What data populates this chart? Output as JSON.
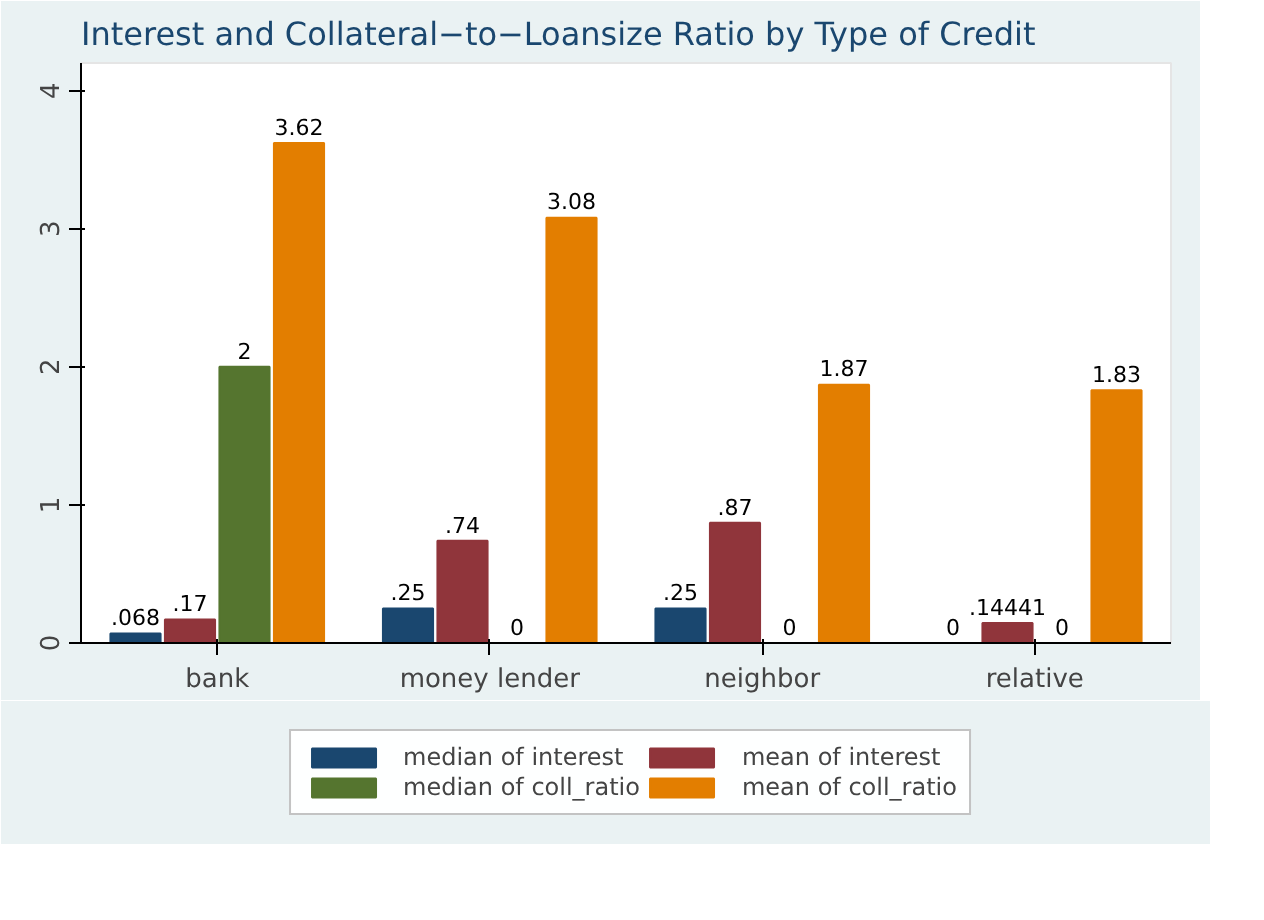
{
  "chart_data": {
    "type": "bar",
    "title": "Interest and Collateral−to−Loansize Ratio by Type of Credit",
    "categories": [
      "bank",
      "money lender",
      "neighbor",
      "relative"
    ],
    "series": [
      {
        "name": "median of interest",
        "color": "#1a476f",
        "values": [
          0.068,
          0.25,
          0.25,
          0
        ],
        "value_labels": [
          ".068",
          ".25",
          ".25",
          "0"
        ]
      },
      {
        "name": "mean of interest",
        "color": "#90353b",
        "values": [
          0.17,
          0.74,
          0.87,
          0.14441
        ],
        "value_labels": [
          ".17",
          ".74",
          ".87",
          ".14441"
        ]
      },
      {
        "name": "median of coll_ratio",
        "color": "#55752f",
        "values": [
          2,
          0,
          0,
          0
        ],
        "value_labels": [
          "2",
          "0",
          "0",
          "0"
        ]
      },
      {
        "name": "mean of coll_ratio",
        "color": "#e37e00",
        "values": [
          3.62,
          3.08,
          1.87,
          1.83
        ],
        "value_labels": [
          "3.62",
          "3.08",
          "1.87",
          "1.83"
        ]
      }
    ],
    "ylim": [
      0,
      4.2
    ],
    "yticks": [
      0,
      1,
      2,
      3,
      4
    ],
    "grid": false,
    "legend": "bottom"
  }
}
